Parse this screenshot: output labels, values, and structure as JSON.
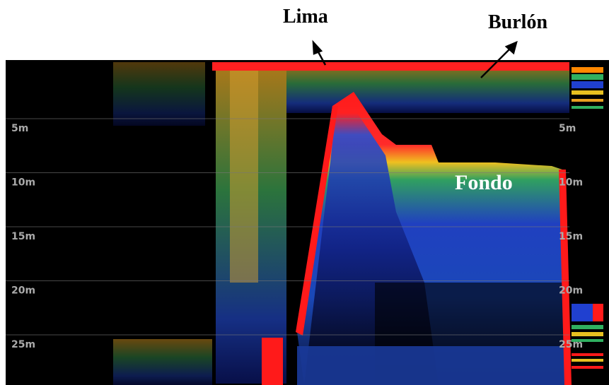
{
  "labels": {
    "lima": "Lima",
    "burlon": "Burlón",
    "fondo": "Fondo"
  },
  "depths": [
    "5m",
    "10m",
    "15m",
    "20m",
    "25m"
  ]
}
